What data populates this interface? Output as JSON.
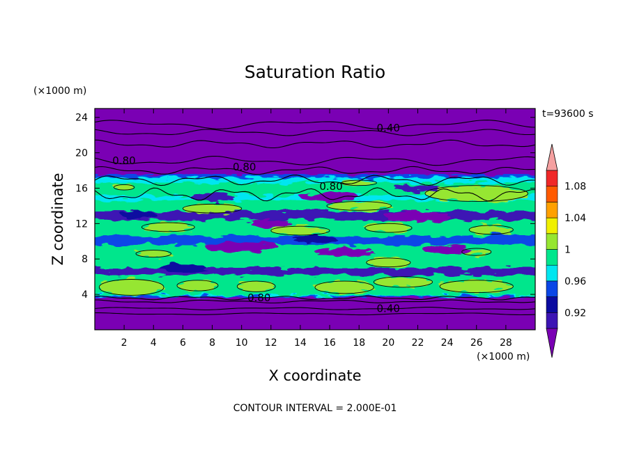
{
  "chart_data": {
    "type": "heatmap",
    "title": "Saturation Ratio",
    "xlabel": "X coordinate",
    "ylabel": "Z coordinate",
    "x_unit": "(×1000 m)",
    "y_unit": "(×1000 m)",
    "time_label": "t=93600 s",
    "footer": "CONTOUR INTERVAL = 2.000E-01",
    "xlim": [
      0,
      30
    ],
    "ylim": [
      0,
      25
    ],
    "x_ticks": [
      2,
      4,
      6,
      8,
      10,
      12,
      14,
      16,
      18,
      20,
      22,
      24,
      26,
      28
    ],
    "y_ticks": [
      4,
      8,
      12,
      16,
      20,
      24
    ],
    "colorbar": {
      "levels": [
        0.92,
        0.96,
        1,
        1.04,
        1.08
      ],
      "level_labels": [
        "0.92",
        "0.96",
        "1",
        "1.04",
        "1.08"
      ],
      "colors": [
        "#7a00b4",
        "#3c14b4",
        "#0a0aa0",
        "#0a46e6",
        "#00e6f0",
        "#00e68c",
        "#96e632",
        "#f0f000",
        "#ffa000",
        "#ff5a00",
        "#f02828",
        "#f5a0a0"
      ]
    },
    "contour_labels": [
      {
        "text": "0.40",
        "x": 19.2,
        "z": 22.8
      },
      {
        "text": "0.80",
        "x": 1.2,
        "z": 19.1
      },
      {
        "text": "0.80",
        "x": 9.4,
        "z": 18.4
      },
      {
        "text": "0.80",
        "x": 15.3,
        "z": 16.2
      },
      {
        "text": "0.80",
        "x": 10.4,
        "z": 3.6
      },
      {
        "text": "0.40",
        "x": 19.2,
        "z": 2.4
      }
    ]
  }
}
